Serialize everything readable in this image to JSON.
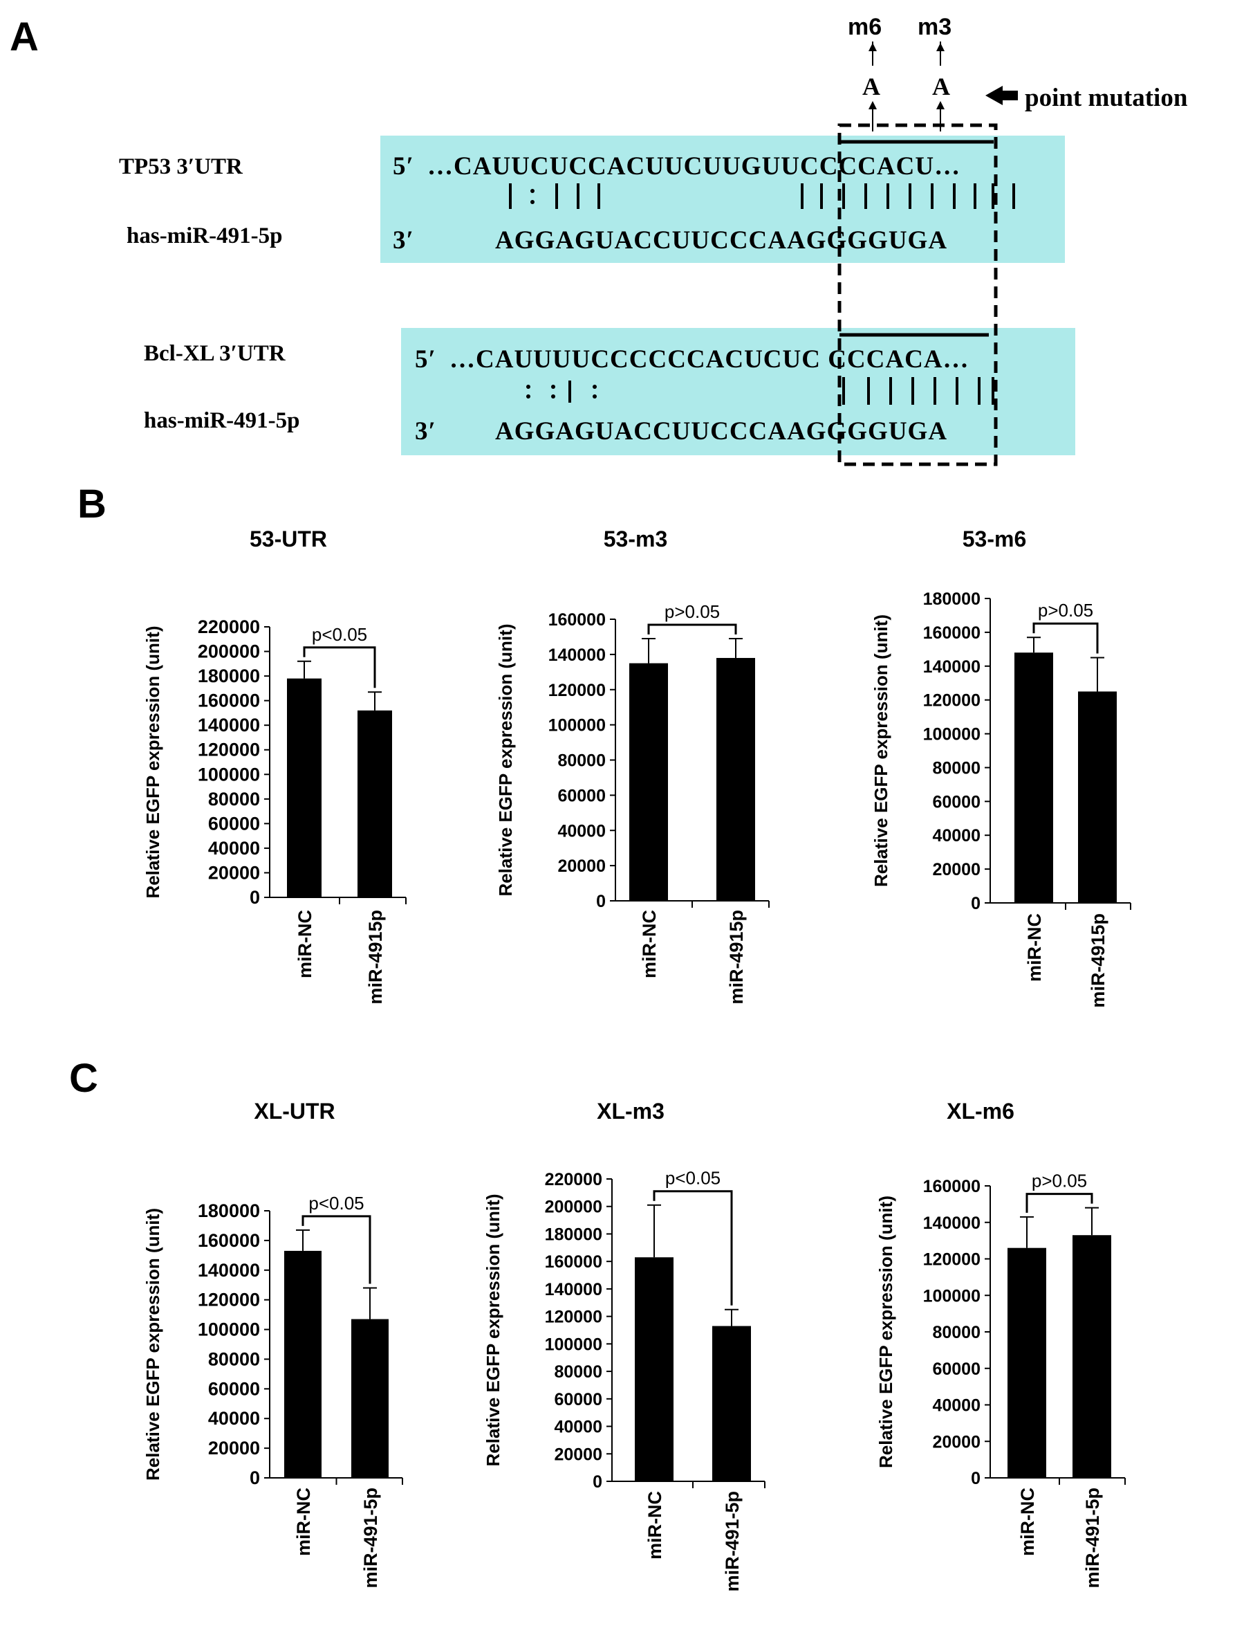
{
  "panels": {
    "a": "A",
    "b": "B",
    "c": "C"
  },
  "panel_a": {
    "markers": [
      "m6",
      "m3"
    ],
    "mutated_base": "A",
    "point_mutation_label": "point mutation",
    "tp53": {
      "label": "TP53 3′UTR",
      "five_prime": "5′",
      "sequence": "…CAUUCUCCACUUCUUGUUCCCCACU…",
      "mir_label": "has-miR-491-5p",
      "three_prime": "3′",
      "mir_sequence": "AGGAGUACCUUCCCAAGGGGUGA"
    },
    "bclxl": {
      "label": "Bcl-XL 3′UTR",
      "five_prime": "5′",
      "sequence": "…CAUUUUCCCCCCACUCUC CCCACA…",
      "mir_label": "has-miR-491-5p",
      "three_prime": "3′",
      "mir_sequence": "AGGAGUACCUUCCCAAGGGGUGA"
    }
  },
  "colors": {
    "sequence_box": "#aeeaea",
    "bar": "#000000"
  },
  "chart_data": [
    {
      "type": "bar",
      "title": "53-UTR",
      "ylabel": "Relative EGFP expression (unit)",
      "categories": [
        "miR-NC",
        "miR-4915p"
      ],
      "values": [
        178000,
        152000
      ],
      "errors": [
        14000,
        15000
      ],
      "ylim": [
        0,
        220000
      ],
      "yticks": [
        0,
        20000,
        40000,
        60000,
        80000,
        100000,
        120000,
        140000,
        160000,
        180000,
        200000,
        220000
      ],
      "significance": "p<0.05"
    },
    {
      "type": "bar",
      "title": "53-m3",
      "ylabel": "Relative EGFP expression (unit)",
      "categories": [
        "miR-NC",
        "miR-4915p"
      ],
      "values": [
        135000,
        138000
      ],
      "errors": [
        14000,
        11000
      ],
      "ylim": [
        0,
        160000
      ],
      "yticks": [
        0,
        20000,
        40000,
        60000,
        80000,
        100000,
        120000,
        140000,
        160000
      ],
      "significance": "p>0.05"
    },
    {
      "type": "bar",
      "title": "53-m6",
      "ylabel": "Relative EGFP expression (unit)",
      "categories": [
        "miR-NC",
        "miR-4915p"
      ],
      "values": [
        148000,
        125000
      ],
      "errors": [
        9000,
        20000
      ],
      "ylim": [
        0,
        180000
      ],
      "yticks": [
        0,
        20000,
        40000,
        60000,
        80000,
        100000,
        120000,
        140000,
        160000,
        180000
      ],
      "significance": "p>0.05"
    },
    {
      "type": "bar",
      "title": "XL-UTR",
      "ylabel": "Relative EGFP expression (unit)",
      "categories": [
        "miR-NC",
        "miR-491-5p"
      ],
      "values": [
        153000,
        107000
      ],
      "errors": [
        14000,
        21000
      ],
      "ylim": [
        0,
        180000
      ],
      "yticks": [
        0,
        20000,
        40000,
        60000,
        80000,
        100000,
        120000,
        140000,
        160000,
        180000
      ],
      "significance": "p<0.05"
    },
    {
      "type": "bar",
      "title": "XL-m3",
      "ylabel": "Relative EGFP expression (unit)",
      "categories": [
        "miR-NC",
        "miR-491-5p"
      ],
      "values": [
        163000,
        113000
      ],
      "errors": [
        38000,
        12000
      ],
      "ylim": [
        0,
        220000
      ],
      "yticks": [
        0,
        20000,
        40000,
        60000,
        80000,
        100000,
        120000,
        140000,
        160000,
        180000,
        200000,
        220000
      ],
      "significance": "p<0.05"
    },
    {
      "type": "bar",
      "title": "XL-m6",
      "ylabel": "Relative EGFP expression (unit)",
      "categories": [
        "miR-NC",
        "miR-491-5p"
      ],
      "values": [
        126000,
        133000
      ],
      "errors": [
        17000,
        15000
      ],
      "ylim": [
        0,
        160000
      ],
      "yticks": [
        0,
        20000,
        40000,
        60000,
        80000,
        100000,
        120000,
        140000,
        160000
      ],
      "significance": "p>0.05"
    }
  ]
}
